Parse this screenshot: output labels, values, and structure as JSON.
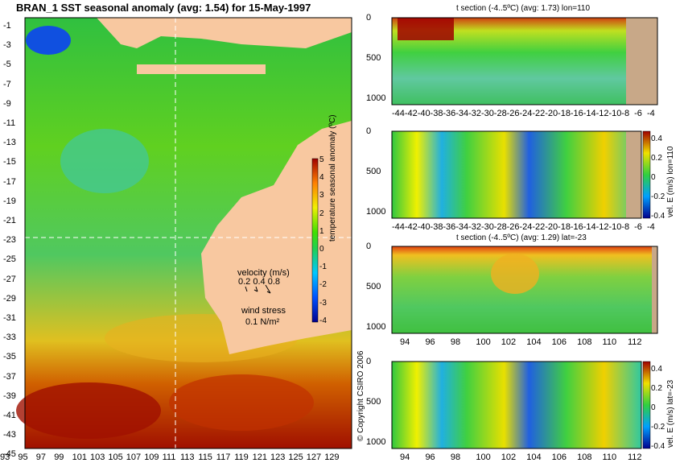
{
  "map_panel": {
    "title": "BRAN_1  SST seasonal anomaly  (avg: 1.54)  for 15-May-1997",
    "lat_ticks": [
      "-1",
      "-3",
      "-5",
      "-7",
      "-9",
      "-11",
      "-13",
      "-15",
      "-17",
      "-19",
      "-21",
      "-23",
      "-25",
      "-27",
      "-29",
      "-31",
      "-33",
      "-35",
      "-37",
      "-39",
      "-41",
      "-43",
      "-45"
    ],
    "lon_ticks": [
      "93",
      "95",
      "97",
      "99",
      "101",
      "103",
      "105",
      "107",
      "109",
      "111",
      "113",
      "115",
      "117",
      "119",
      "121",
      "123",
      "125",
      "127",
      "129"
    ],
    "colorbar_label": "temperature seasonal anomaly (ºC)",
    "colorbar_ticks": [
      "5",
      "4",
      "3",
      "2",
      "1",
      "0",
      "-1",
      "-2",
      "-3",
      "-4"
    ],
    "velocity_label": "velocity (m/s)",
    "velocity_values": "0.2 0.4 0.8",
    "wind_label": "wind stress",
    "wind_value": "0.1 N/m²",
    "copyright": "© Copyright CSIRO 2006",
    "crosshair": {
      "lon": 110,
      "lat": -23
    }
  },
  "section_1": {
    "title": "t section (-4..5ºC) (avg: 1.73) lon=110",
    "x_ticks": [
      "-44",
      "-42",
      "-40",
      "-38",
      "-36",
      "-34",
      "-32",
      "-30",
      "-28",
      "-26",
      "-24",
      "-22",
      "-20",
      "-18",
      "-16",
      "-14",
      "-12",
      "-10",
      "-8",
      "-6",
      "-4"
    ],
    "y_ticks": [
      "0",
      "500",
      "1000"
    ]
  },
  "section_2": {
    "x_ticks": [
      "-44",
      "-42",
      "-40",
      "-38",
      "-36",
      "-34",
      "-32",
      "-30",
      "-28",
      "-26",
      "-24",
      "-22",
      "-20",
      "-18",
      "-16",
      "-14",
      "-12",
      "-10",
      "-8",
      "-6",
      "-4"
    ],
    "y_ticks": [
      "0",
      "500",
      "1000"
    ],
    "colorbar_label": "vel. E (m/s) lon=110",
    "colorbar_ticks": [
      "0.4",
      "0.2",
      "0",
      "-0.2",
      "-0.4"
    ]
  },
  "section_3": {
    "title": "t section (-4..5ºC) (avg: 1.29) lat=-23",
    "x_ticks": [
      "94",
      "96",
      "98",
      "100",
      "102",
      "104",
      "106",
      "108",
      "110",
      "112"
    ],
    "y_ticks": [
      "0",
      "500",
      "1000"
    ]
  },
  "section_4": {
    "x_ticks": [
      "94",
      "96",
      "98",
      "100",
      "102",
      "104",
      "106",
      "108",
      "110",
      "112"
    ],
    "y_ticks": [
      "0",
      "500",
      "1000"
    ],
    "colorbar_label": "vel. E (m/s) lat=-23",
    "colorbar_ticks": [
      "0.4",
      "0.2",
      "0",
      "-0.2",
      "-0.4"
    ]
  },
  "chart_data": [
    {
      "type": "heatmap",
      "title": "BRAN_1  SST seasonal anomaly  (avg: 1.54)  for 15-May-1997",
      "xlim": [
        93,
        130
      ],
      "ylim": [
        -45,
        0
      ],
      "zlim": [
        -4,
        5
      ],
      "zlabel": "temperature seasonal anomaly (ºC)"
    },
    {
      "type": "heatmap",
      "title": "t section (-4..5ºC) (avg: 1.73) lon=110",
      "xlim": [
        -45,
        -3
      ],
      "ylim": [
        1050,
        0
      ]
    },
    {
      "type": "heatmap",
      "xlim": [
        -45,
        -3
      ],
      "ylim": [
        1050,
        0
      ],
      "zlim": [
        -0.4,
        0.4
      ],
      "zlabel": "vel. E (m/s) lon=110"
    },
    {
      "type": "heatmap",
      "title": "t section (-4..5ºC) (avg: 1.29) lat=-23",
      "xlim": [
        93,
        114
      ],
      "ylim": [
        1050,
        0
      ]
    },
    {
      "type": "heatmap",
      "xlim": [
        93,
        114
      ],
      "ylim": [
        1050,
        0
      ],
      "zlim": [
        -0.4,
        0.4
      ],
      "zlabel": "vel. E (m/s) lat=-23"
    }
  ]
}
